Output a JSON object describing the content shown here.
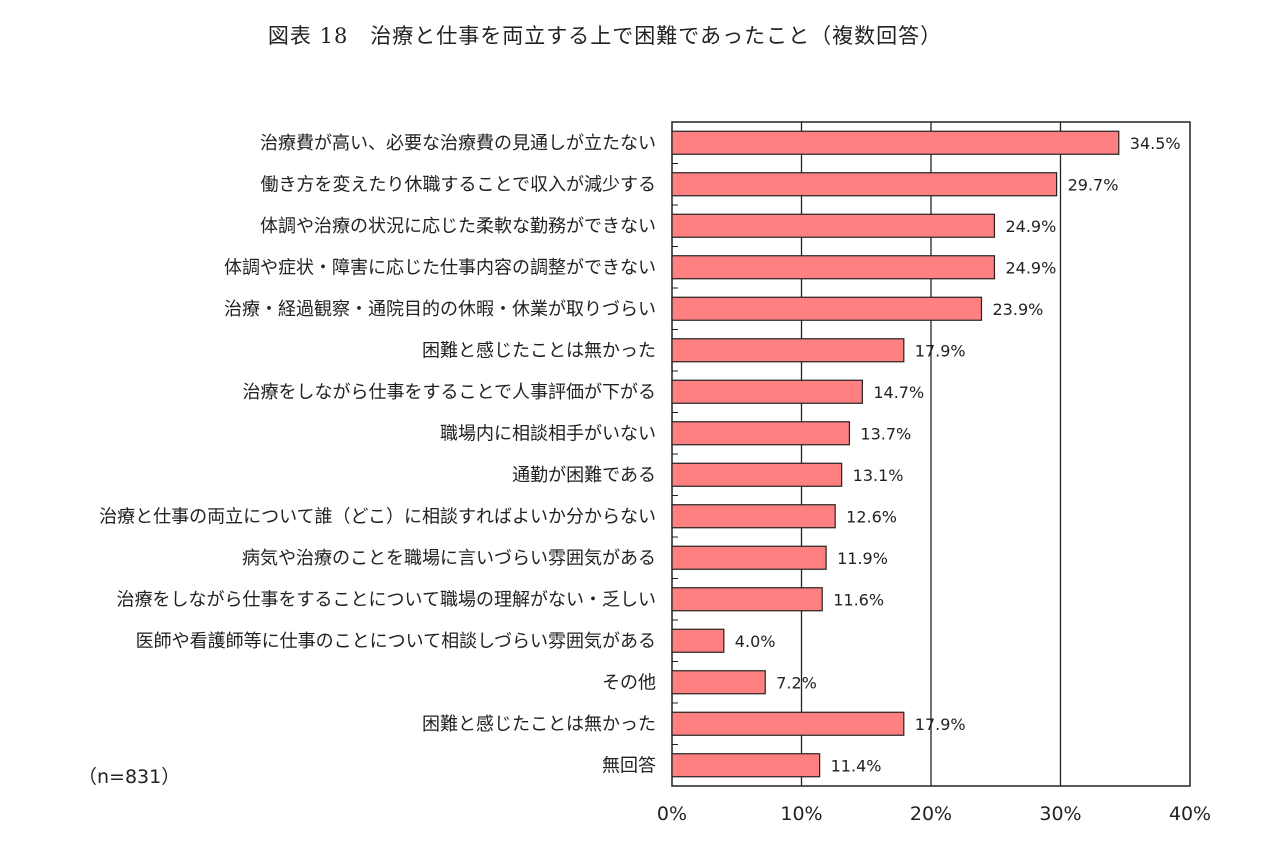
{
  "chart_data": {
    "type": "bar",
    "orientation": "horizontal",
    "title": "図表 18　治療と仕事を両立する上で困難であったこと（複数回答）",
    "sample_note": "（n=831）",
    "categories": [
      "治療費が高い、必要な治療費の見通しが立たない",
      "働き方を変えたり休職することで収入が減少する",
      "体調や治療の状況に応じた柔軟な勤務ができない",
      "体調や症状・障害に応じた仕事内容の調整ができない",
      "治療・経過観察・通院目的の休暇・休業が取りづらい",
      "困難と感じたことは無かった",
      "治療をしながら仕事をすることで人事評価が下がる",
      "職場内に相談相手がいない",
      "通勤が困難である",
      "治療と仕事の両立について誰（どこ）に相談すればよいか分からない",
      "病気や治療のことを職場に言いづらい雰囲気がある",
      "治療をしながら仕事をすることについて職場の理解がない・乏しい",
      "医師や看護師等に仕事のことについて相談しづらい雰囲気がある",
      "その他",
      "困難と感じたことは無かった",
      "無回答"
    ],
    "values": [
      34.5,
      29.7,
      24.9,
      24.9,
      23.9,
      17.9,
      14.7,
      13.7,
      13.1,
      12.6,
      11.9,
      11.6,
      4.0,
      7.2,
      17.9,
      11.4
    ],
    "value_labels": [
      "34.5%",
      "29.7%",
      "24.9%",
      "24.9%",
      "23.9%",
      "17.9%",
      "14.7%",
      "13.7%",
      "13.1%",
      "12.6%",
      "11.9%",
      "11.6%",
      "4.0%",
      "7.2%",
      "17.9%",
      "11.4%"
    ],
    "x_ticks": [
      "0%",
      "10%",
      "20%",
      "30%",
      "40%"
    ],
    "xlim": [
      0,
      40
    ],
    "grid": true,
    "bar_color": "#ff8080",
    "bar_edge_color": "#222222"
  }
}
